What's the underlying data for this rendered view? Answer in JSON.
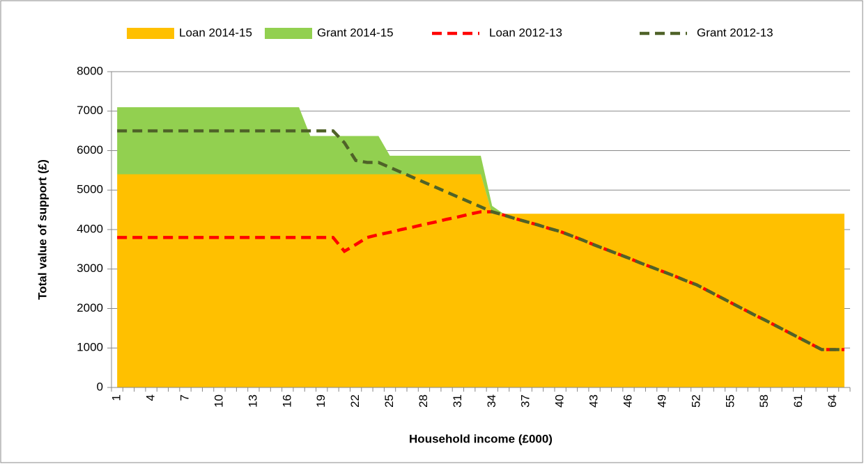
{
  "chart_data": {
    "type": "area",
    "xlabel": "Household income (£000)",
    "ylabel": "Total value of support (£)",
    "categories": [
      1,
      null,
      null,
      4,
      null,
      null,
      7,
      null,
      null,
      10,
      null,
      null,
      13,
      null,
      null,
      16,
      null,
      null,
      19,
      null,
      null,
      22,
      null,
      null,
      25,
      null,
      null,
      28,
      null,
      null,
      31,
      null,
      null,
      34,
      null,
      null,
      37,
      null,
      null,
      40,
      null,
      null,
      43,
      null,
      null,
      46,
      null,
      null,
      49,
      null,
      null,
      52,
      null,
      null,
      55,
      null,
      null,
      58,
      null,
      null,
      61,
      null,
      null,
      64,
      null
    ],
    "series": [
      {
        "name": "Loan 2014-15",
        "type": "area",
        "stacked": true,
        "color": "#ffc000",
        "values": [
          5400,
          5400,
          5400,
          5400,
          5400,
          5400,
          5400,
          5400,
          5400,
          5400,
          5400,
          5400,
          5400,
          5400,
          5400,
          5400,
          5400,
          5400,
          5400,
          5400,
          5400,
          5400,
          5400,
          5400,
          5400,
          5400,
          5400,
          5400,
          5400,
          5400,
          5400,
          5400,
          5400,
          4400,
          4400,
          4400,
          4400,
          4400,
          4400,
          4400,
          4400,
          4400,
          4400,
          4400,
          4400,
          4400,
          4400,
          4400,
          4400,
          4400,
          4400,
          4400,
          4400,
          4400,
          4400,
          4400,
          4400,
          4400,
          4400,
          4400,
          4400,
          4400,
          4400,
          4400,
          4400
        ]
      },
      {
        "name": "Grant 2014-15",
        "type": "area",
        "stacked": true,
        "color": "#92d050",
        "values": [
          1700,
          1700,
          1700,
          1700,
          1700,
          1700,
          1700,
          1700,
          1700,
          1700,
          1700,
          1700,
          1700,
          1700,
          1700,
          1700,
          1700,
          970,
          970,
          970,
          970,
          970,
          970,
          970,
          470,
          470,
          470,
          470,
          470,
          470,
          470,
          470,
          470,
          200,
          0,
          0,
          0,
          0,
          0,
          0,
          0,
          0,
          0,
          0,
          0,
          0,
          0,
          0,
          0,
          0,
          0,
          0,
          0,
          0,
          0,
          0,
          0,
          0,
          0,
          0,
          0,
          0,
          0,
          0,
          0
        ]
      },
      {
        "name": "Loan 2012-13",
        "type": "line",
        "dashed": true,
        "color": "#ff0000",
        "values": [
          3800,
          3800,
          3800,
          3800,
          3800,
          3800,
          3800,
          3800,
          3800,
          3800,
          3800,
          3800,
          3800,
          3800,
          3800,
          3800,
          3800,
          3800,
          3800,
          3800,
          3450,
          3620,
          3800,
          3870,
          3930,
          4000,
          4060,
          4130,
          4190,
          4260,
          4320,
          4390,
          4450,
          4450,
          4370,
          4280,
          4200,
          4120,
          4030,
          3950,
          3840,
          3730,
          3610,
          3500,
          3390,
          3280,
          3160,
          3050,
          2940,
          2830,
          2710,
          2600,
          2450,
          2300,
          2150,
          2000,
          1850,
          1710,
          1560,
          1410,
          1260,
          1110,
          960,
          960,
          960
        ]
      },
      {
        "name": "Grant 2012-13",
        "type": "line",
        "dashed": true,
        "color": "#4f6228",
        "values": [
          6500,
          6500,
          6500,
          6500,
          6500,
          6500,
          6500,
          6500,
          6500,
          6500,
          6500,
          6500,
          6500,
          6500,
          6500,
          6500,
          6500,
          6500,
          6500,
          6500,
          6200,
          5750,
          5700,
          5700,
          5575,
          5450,
          5325,
          5200,
          5075,
          4950,
          4825,
          4700,
          4575,
          4450,
          4370,
          4280,
          4200,
          4120,
          4030,
          3950,
          3840,
          3730,
          3610,
          3500,
          3390,
          3280,
          3160,
          3050,
          2940,
          2830,
          2710,
          2600,
          2450,
          2300,
          2150,
          2000,
          1850,
          1710,
          1560,
          1410,
          1260,
          1110,
          960,
          960,
          960
        ]
      }
    ],
    "ylim": [
      0,
      8000
    ],
    "yticks": [
      0,
      1000,
      2000,
      3000,
      4000,
      5000,
      6000,
      7000,
      8000
    ],
    "grid": true,
    "legend": "top"
  }
}
